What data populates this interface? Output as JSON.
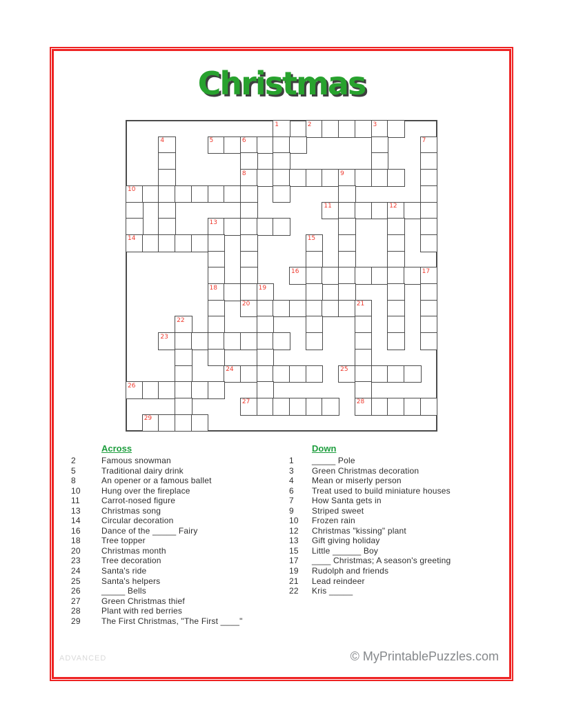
{
  "title": "Christmas",
  "grid": {
    "rows": 19,
    "cols": 19,
    "cells": [
      ".........X.XXXXXX..",
      "..X..XXXXXX....X..X",
      "..X....X.X.....X..X",
      "..X....XXXXXXXXXX.X",
      "XXXXXXXX.X...X....X",
      "X.X....X....XXXXXXX",
      "X.X..XXXXX...X..X.X",
      "XXXXXX.X...X.X..X.X",
      ".....X.X...X.X..X..",
      ".....X.X..XXXXXXXXX",
      ".....XXXX..X.X..X.X",
      ".....X.XXXXXXXX.X.X",
      "...X.X..X..X..X.X.X",
      "..XXXXXXXX.X..X.X.X",
      "...X.X..X.....X....",
      "...X..XXXXXX.XXXXX.",
      "XXXXXX..X.....X....",
      "...X...XXXXXX.XXXXX",
      ".XXXX.............."
    ],
    "numbers": [
      [
        1,
        0,
        9
      ],
      [
        2,
        0,
        11
      ],
      [
        3,
        0,
        15
      ],
      [
        4,
        1,
        2
      ],
      [
        5,
        1,
        5
      ],
      [
        6,
        1,
        7
      ],
      [
        7,
        1,
        18
      ],
      [
        8,
        3,
        7
      ],
      [
        9,
        3,
        13
      ],
      [
        10,
        4,
        0
      ],
      [
        11,
        5,
        12
      ],
      [
        12,
        5,
        16
      ],
      [
        13,
        6,
        5
      ],
      [
        14,
        7,
        0
      ],
      [
        15,
        7,
        11
      ],
      [
        16,
        9,
        10
      ],
      [
        17,
        9,
        18
      ],
      [
        18,
        10,
        5
      ],
      [
        19,
        10,
        8
      ],
      [
        20,
        11,
        7
      ],
      [
        21,
        11,
        14
      ],
      [
        22,
        12,
        3
      ],
      [
        23,
        13,
        2
      ],
      [
        24,
        15,
        6
      ],
      [
        25,
        15,
        13
      ],
      [
        26,
        16,
        0
      ],
      [
        27,
        17,
        7
      ],
      [
        28,
        17,
        14
      ],
      [
        29,
        18,
        1
      ]
    ]
  },
  "clues": {
    "across_label": "Across",
    "down_label": "Down",
    "across": [
      {
        "num": "2",
        "text": "Famous snowman"
      },
      {
        "num": "5",
        "text": "Traditional dairy drink"
      },
      {
        "num": "8",
        "text": "An opener or a famous ballet"
      },
      {
        "num": "10",
        "text": "Hung over the fireplace"
      },
      {
        "num": "11",
        "text": "Carrot-nosed figure"
      },
      {
        "num": "13",
        "text": "Christmas song"
      },
      {
        "num": "14",
        "text": "Circular decoration"
      },
      {
        "num": "16",
        "text": "Dance of the _____ Fairy"
      },
      {
        "num": "18",
        "text": "Tree topper"
      },
      {
        "num": "20",
        "text": "Christmas month"
      },
      {
        "num": "23",
        "text": "Tree decoration"
      },
      {
        "num": "24",
        "text": "Santa's ride"
      },
      {
        "num": "25",
        "text": "Santa's helpers"
      },
      {
        "num": "26",
        "text": "_____ Bells"
      },
      {
        "num": "27",
        "text": "Green Christmas thief"
      },
      {
        "num": "28",
        "text": "Plant with red berries"
      },
      {
        "num": "29",
        "text": "The First Christmas, \"The First ____\""
      }
    ],
    "down": [
      {
        "num": "1",
        "text": "_____ Pole"
      },
      {
        "num": "3",
        "text": "Green Christmas decoration"
      },
      {
        "num": "4",
        "text": "Mean or miserly person"
      },
      {
        "num": "6",
        "text": "Treat used to build miniature houses"
      },
      {
        "num": "7",
        "text": "How Santa gets in"
      },
      {
        "num": "9",
        "text": "Striped sweet"
      },
      {
        "num": "10",
        "text": "Frozen rain"
      },
      {
        "num": "12",
        "text": "Christmas \"kissing\" plant"
      },
      {
        "num": "13",
        "text": "Gift giving holiday"
      },
      {
        "num": "15",
        "text": "Little ______ Boy"
      },
      {
        "num": "17",
        "text": "____ Christmas; A season's greeting"
      },
      {
        "num": "19",
        "text": "Rudolph and friends"
      },
      {
        "num": "21",
        "text": "Lead reindeer"
      },
      {
        "num": "22",
        "text": "Kris _____"
      }
    ]
  },
  "footer": {
    "level": "ADVANCED",
    "credit": "© MyPrintablePuzzles.com"
  },
  "colors": {
    "border_red": "#ee2222",
    "number_red": "#ee3a2e",
    "title_green": "#28a22e",
    "header_green": "#1e9e3e",
    "grid_line": "#4a4a4a"
  }
}
